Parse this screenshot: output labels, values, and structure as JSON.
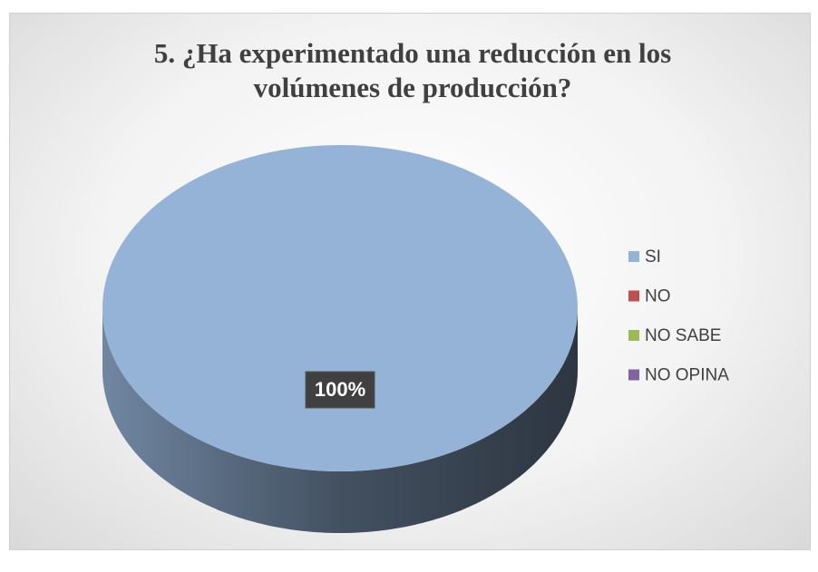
{
  "chart_data": {
    "type": "pie",
    "title": "5. ¿Ha experimentado una reducción en los volúmenes de producción?",
    "categories": [
      "SI",
      "NO",
      "NO SABE",
      "NO OPINA"
    ],
    "values": [
      100,
      0,
      0,
      0
    ],
    "value_labels": [
      "100%",
      null,
      null,
      null
    ],
    "colors": [
      "#95b3d7",
      "#c0504d",
      "#9bbb59",
      "#8064a2"
    ],
    "legend": "right"
  }
}
